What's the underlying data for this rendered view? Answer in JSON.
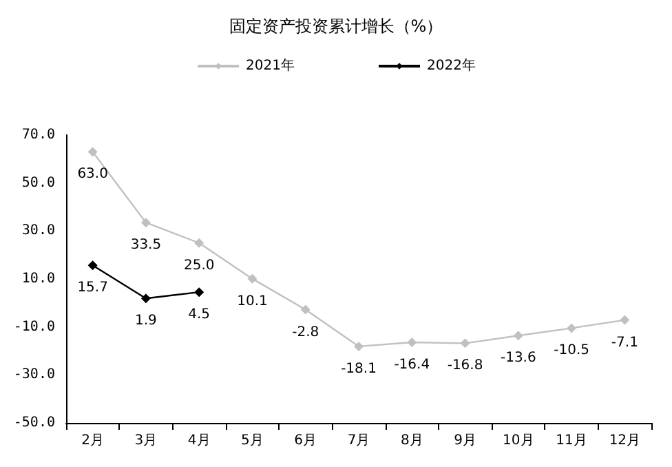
{
  "chart_data": {
    "type": "line",
    "title": "固定资产投资累计增长（%）",
    "categories": [
      "2月",
      "3月",
      "4月",
      "5月",
      "6月",
      "7月",
      "8月",
      "9月",
      "10月",
      "11月",
      "12月"
    ],
    "series": [
      {
        "name": "2021年",
        "color": "#c0c0c0",
        "values": [
          63.0,
          33.5,
          25.0,
          10.1,
          -2.8,
          -18.1,
          -16.4,
          -16.8,
          -13.6,
          -10.5,
          -7.1
        ],
        "value_labels": [
          "63.0",
          "33.5",
          "25.0",
          "10.1",
          "-2.8",
          "-18.1",
          "-16.4",
          "-16.8",
          "-13.6",
          "-10.5",
          "-7.1"
        ]
      },
      {
        "name": "2022年",
        "color": "#000000",
        "values": [
          15.7,
          1.9,
          4.5,
          null,
          null,
          null,
          null,
          null,
          null,
          null,
          null
        ],
        "value_labels": [
          "15.7",
          "1.9",
          "4.5",
          null,
          null,
          null,
          null,
          null,
          null,
          null,
          null
        ]
      }
    ],
    "ylim": [
      -50,
      70
    ],
    "yticks": [
      {
        "value": -50,
        "label": "-50.0"
      },
      {
        "value": -30,
        "label": "-30.0"
      },
      {
        "value": -10,
        "label": "-10.0"
      },
      {
        "value": 10,
        "label": "10.0"
      },
      {
        "value": 30,
        "label": "30.0"
      },
      {
        "value": 50,
        "label": "50.0"
      },
      {
        "value": 70,
        "label": "70.0"
      }
    ],
    "grid": false,
    "legend": "top",
    "marker": "diamond",
    "line_style": "solid"
  }
}
